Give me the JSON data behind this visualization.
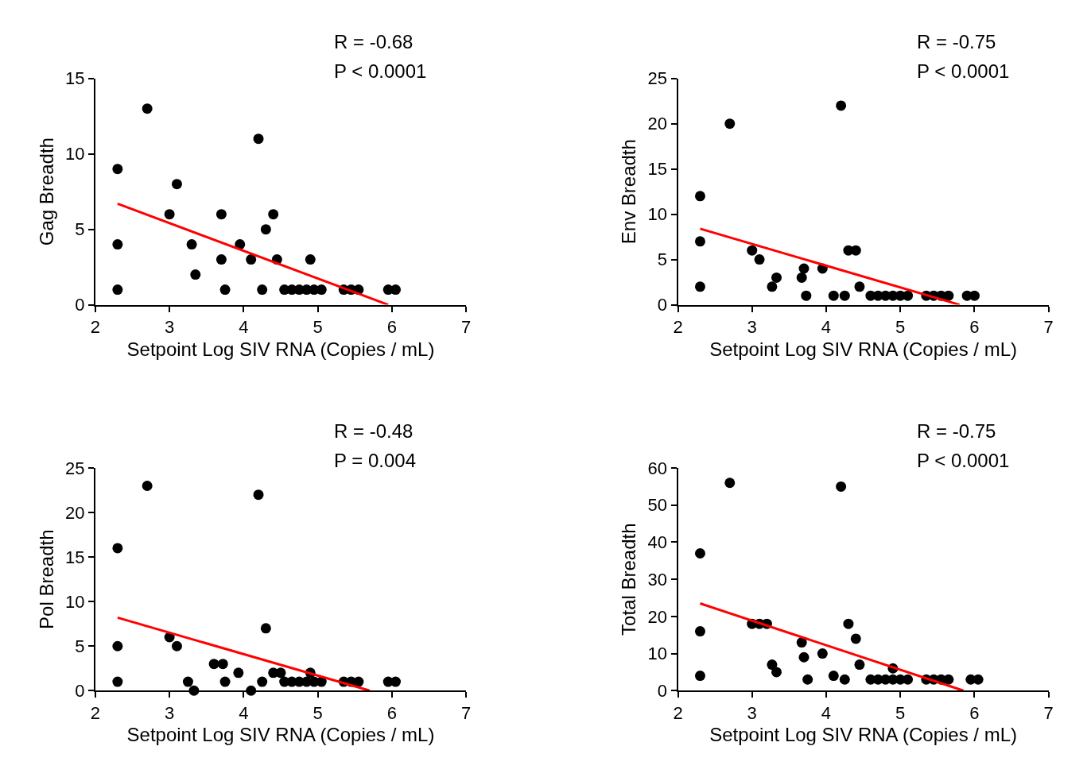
{
  "chart_data": [
    {
      "type": "scatter",
      "xlabel": "Setpoint Log SIV RNA (Copies / mL)",
      "ylabel": "Gag Breadth",
      "xlim": [
        2,
        7
      ],
      "xticks": [
        2,
        3,
        4,
        5,
        6,
        7
      ],
      "ylim": [
        0,
        15
      ],
      "yticks": [
        0,
        5,
        10,
        15
      ],
      "annotations": [
        "R = -0.68",
        "P < 0.0001"
      ],
      "series": [
        {
          "type": "scatter",
          "color": "#000000",
          "marker": "circle",
          "x": [
            2.3,
            2.3,
            2.3,
            2.7,
            3.0,
            3.1,
            3.3,
            3.35,
            3.7,
            3.7,
            3.75,
            3.95,
            4.1,
            4.2,
            4.25,
            4.3,
            4.4,
            4.45,
            4.9,
            4.55,
            4.65,
            4.75,
            4.85,
            4.95,
            5.05,
            5.35,
            5.45,
            5.55,
            5.95,
            6.05
          ],
          "values": [
            9,
            4,
            1,
            13,
            6,
            8,
            4,
            2,
            6,
            3,
            1,
            4,
            3,
            11,
            1,
            5,
            6,
            3,
            3,
            1,
            1,
            1,
            1,
            1,
            1,
            1,
            1,
            1,
            1,
            1
          ]
        },
        {
          "type": "line",
          "color": "#ff0000",
          "marker": "none",
          "x": [
            2.3,
            5.95
          ],
          "values": [
            6.7,
            0
          ]
        }
      ]
    },
    {
      "type": "scatter",
      "xlabel": "Setpoint Log SIV RNA (Copies / mL)",
      "ylabel": "Env Breadth",
      "xlim": [
        2,
        7
      ],
      "xticks": [
        2,
        3,
        4,
        5,
        6,
        7
      ],
      "ylim": [
        0,
        25
      ],
      "yticks": [
        0,
        5,
        10,
        15,
        20,
        25
      ],
      "annotations": [
        "R = -0.75",
        "P < 0.0001"
      ],
      "series": [
        {
          "type": "scatter",
          "color": "#000000",
          "marker": "circle",
          "x": [
            2.3,
            2.3,
            2.3,
            2.7,
            3.0,
            3.1,
            3.27,
            3.33,
            3.67,
            3.7,
            3.73,
            3.95,
            4.1,
            4.25,
            4.2,
            4.3,
            4.4,
            4.45,
            4.6,
            4.7,
            4.8,
            4.9,
            5.0,
            5.1,
            5.35,
            5.45,
            5.55,
            5.65,
            5.9,
            6.0
          ],
          "values": [
            12,
            7,
            2,
            20,
            6,
            5,
            2,
            3,
            3,
            4,
            1,
            4,
            1,
            1,
            22,
            6,
            6,
            2,
            1,
            1,
            1,
            1,
            1,
            1,
            1,
            1,
            1,
            1,
            1,
            1
          ]
        },
        {
          "type": "line",
          "color": "#ff0000",
          "marker": "none",
          "x": [
            2.3,
            5.8
          ],
          "values": [
            8.4,
            0
          ]
        }
      ]
    },
    {
      "type": "scatter",
      "xlabel": "Setpoint Log SIV RNA (Copies / mL)",
      "ylabel": "Pol Breadth",
      "xlim": [
        2,
        7
      ],
      "xticks": [
        2,
        3,
        4,
        5,
        6,
        7
      ],
      "ylim": [
        0,
        25
      ],
      "yticks": [
        0,
        5,
        10,
        15,
        20,
        25
      ],
      "annotations": [
        "R = -0.48",
        "P = 0.004"
      ],
      "series": [
        {
          "type": "scatter",
          "color": "#000000",
          "marker": "circle",
          "x": [
            2.3,
            2.3,
            2.3,
            2.7,
            3.0,
            3.1,
            3.25,
            3.33,
            3.6,
            3.72,
            3.75,
            3.93,
            4.1,
            4.2,
            4.25,
            4.3,
            4.4,
            4.5,
            4.9,
            4.55,
            4.65,
            4.75,
            4.85,
            4.95,
            5.05,
            5.35,
            5.45,
            5.55,
            5.95,
            6.05
          ],
          "values": [
            16,
            5,
            1,
            23,
            6,
            5,
            1,
            0,
            3,
            3,
            1,
            2,
            0,
            22,
            1,
            7,
            2,
            2,
            2,
            1,
            1,
            1,
            1,
            1,
            1,
            1,
            1,
            1,
            1,
            1
          ]
        },
        {
          "type": "line",
          "color": "#ff0000",
          "marker": "none",
          "x": [
            2.3,
            5.7
          ],
          "values": [
            8.2,
            0
          ]
        }
      ]
    },
    {
      "type": "scatter",
      "xlabel": "Setpoint Log SIV RNA (Copies / mL)",
      "ylabel": "Total Breadth",
      "xlim": [
        2,
        7
      ],
      "xticks": [
        2,
        3,
        4,
        5,
        6,
        7
      ],
      "ylim": [
        0,
        60
      ],
      "yticks": [
        0,
        10,
        20,
        30,
        40,
        50,
        60
      ],
      "annotations": [
        "R = -0.75",
        "P < 0.0001"
      ],
      "series": [
        {
          "type": "scatter",
          "color": "#000000",
          "marker": "circle",
          "x": [
            2.3,
            2.3,
            2.3,
            2.7,
            3.0,
            3.1,
            3.2,
            3.27,
            3.33,
            3.67,
            3.7,
            3.75,
            3.95,
            4.1,
            4.2,
            4.25,
            4.3,
            4.4,
            4.45,
            4.9,
            4.6,
            4.7,
            4.8,
            4.9,
            5.0,
            5.1,
            5.35,
            5.45,
            5.55,
            5.65,
            5.95,
            6.05
          ],
          "values": [
            37,
            16,
            4,
            56,
            18,
            18,
            18,
            7,
            5,
            13,
            9,
            3,
            10,
            4,
            55,
            3,
            18,
            14,
            7,
            6,
            3,
            3,
            3,
            3,
            3,
            3,
            3,
            3,
            3,
            3,
            3,
            3
          ]
        },
        {
          "type": "line",
          "color": "#ff0000",
          "marker": "none",
          "x": [
            2.3,
            5.85
          ],
          "values": [
            23.5,
            0
          ]
        }
      ]
    }
  ]
}
